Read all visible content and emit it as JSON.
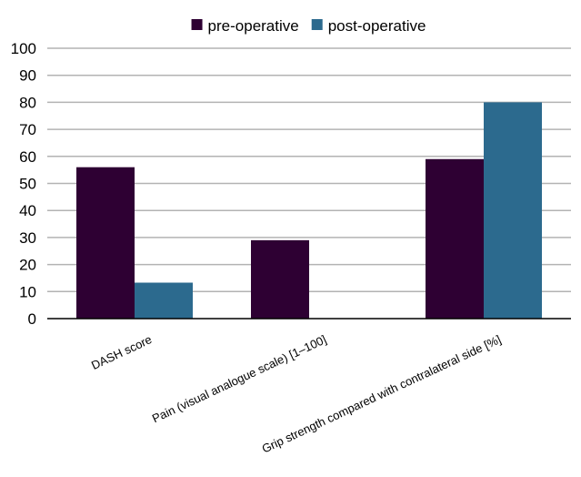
{
  "chart_data": {
    "type": "bar",
    "categories": [
      "DASH score",
      "Pain (visual analogue scale) [1–100]",
      "Grip strength compared with contralateral side [%]"
    ],
    "series": [
      {
        "name": "pre-operative",
        "values": [
          56,
          29,
          59
        ],
        "color": "#2e0033"
      },
      {
        "name": "post-operative",
        "values": [
          13.3,
          null,
          80
        ],
        "color": "#2c6a8e"
      }
    ],
    "title": "",
    "xlabel": "",
    "ylabel": "",
    "ylim": [
      0,
      100
    ],
    "yticks": [
      0,
      10,
      20,
      30,
      40,
      50,
      60,
      70,
      80,
      90,
      100
    ],
    "grid": true,
    "legend_position": "top-center"
  }
}
